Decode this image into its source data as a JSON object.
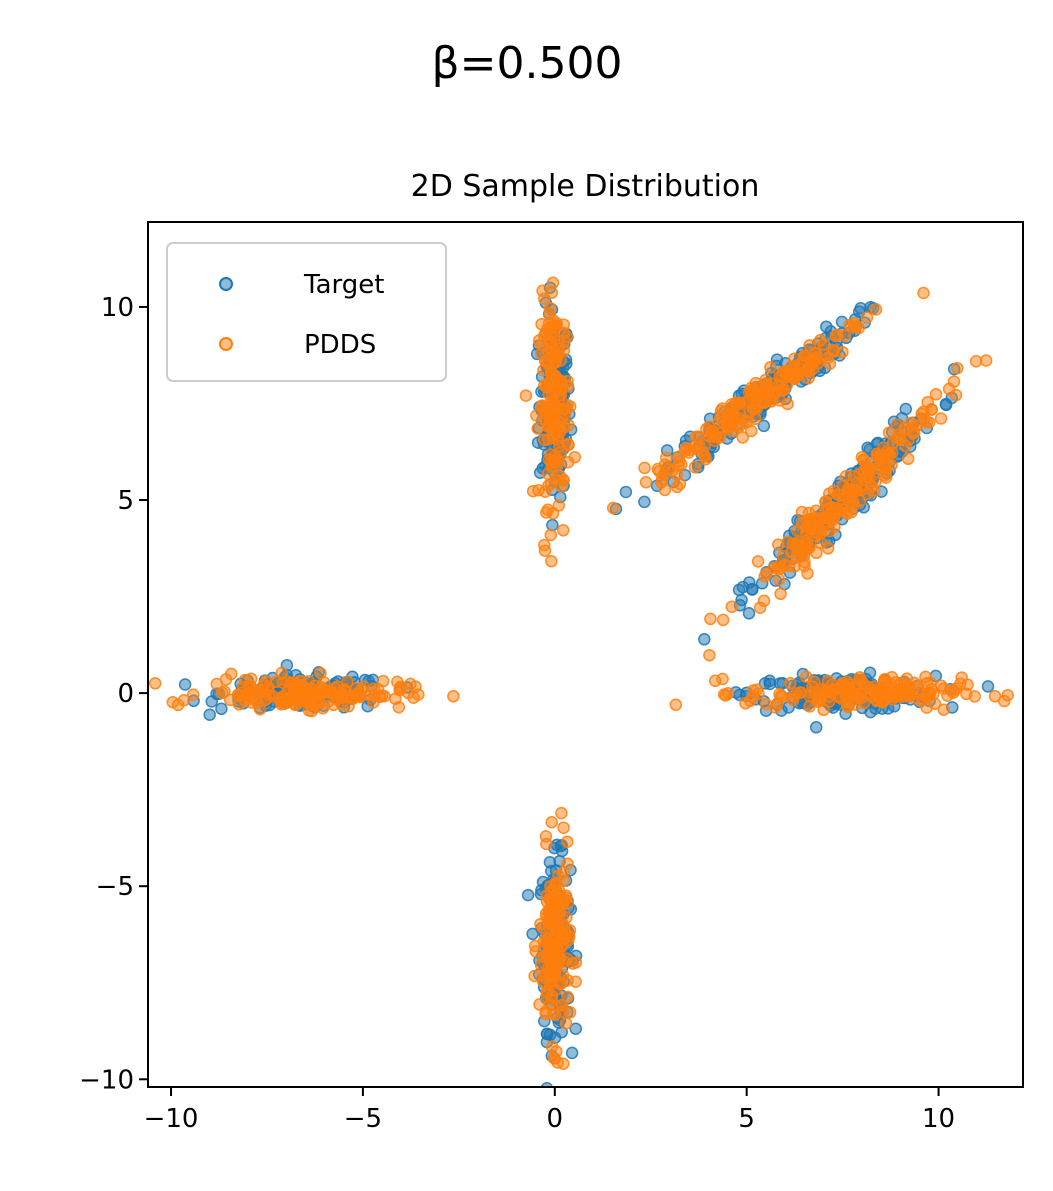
{
  "chart_data": {
    "type": "scatter",
    "suptitle": "β=0.500",
    "title": "2D Sample Distribution",
    "xlabel": "",
    "ylabel": "",
    "xlim": [
      -10.6,
      12.2
    ],
    "ylim": [
      -10.2,
      12.2
    ],
    "x_ticks": [
      -10,
      -5,
      0,
      5,
      10
    ],
    "x_tick_labels": [
      "−10",
      "−5",
      "0",
      "5",
      "10"
    ],
    "y_ticks": [
      -10,
      -5,
      0,
      5,
      10
    ],
    "y_tick_labels": [
      "−10",
      "−5",
      "0",
      "5",
      "10"
    ],
    "grid": false,
    "legend_position": "upper-left",
    "series": [
      {
        "name": "Target",
        "color": "#1f77b4",
        "clusters": [
          {
            "center": [
              0.0,
              7.5
            ],
            "spread": [
              0.2,
              1.2
            ],
            "rotation_deg": 0,
            "count": 160
          },
          {
            "center": [
              0.0,
              -6.5
            ],
            "spread": [
              0.2,
              1.1
            ],
            "rotation_deg": 0,
            "count": 160
          },
          {
            "center": [
              -6.5,
              0.0
            ],
            "spread": [
              1.1,
              0.22
            ],
            "rotation_deg": 0,
            "count": 160
          },
          {
            "center": [
              7.5,
              0.0
            ],
            "spread": [
              1.2,
              0.22
            ],
            "rotation_deg": 0,
            "count": 160
          },
          {
            "center": [
              5.3,
              7.6
            ],
            "spread": [
              1.6,
              0.22
            ],
            "rotation_deg": 38,
            "count": 180
          },
          {
            "center": [
              7.5,
              5.0
            ],
            "spread": [
              1.7,
              0.22
            ],
            "rotation_deg": 46,
            "count": 180
          }
        ]
      },
      {
        "name": "PDDS",
        "color": "#ff7f0e",
        "clusters": [
          {
            "center": [
              0.0,
              7.5
            ],
            "spread": [
              0.2,
              1.3
            ],
            "rotation_deg": 0,
            "count": 160
          },
          {
            "center": [
              0.0,
              -6.6
            ],
            "spread": [
              0.2,
              1.2
            ],
            "rotation_deg": 0,
            "count": 160
          },
          {
            "center": [
              -6.5,
              0.0
            ],
            "spread": [
              1.3,
              0.2
            ],
            "rotation_deg": 0,
            "count": 160
          },
          {
            "center": [
              7.8,
              0.0
            ],
            "spread": [
              1.4,
              0.2
            ],
            "rotation_deg": 0,
            "count": 160
          },
          {
            "center": [
              5.3,
              7.6
            ],
            "spread": [
              1.8,
              0.22
            ],
            "rotation_deg": 38,
            "count": 180
          },
          {
            "center": [
              7.5,
              5.0
            ],
            "spread": [
              1.9,
              0.22
            ],
            "rotation_deg": 46,
            "count": 180
          }
        ]
      }
    ]
  }
}
